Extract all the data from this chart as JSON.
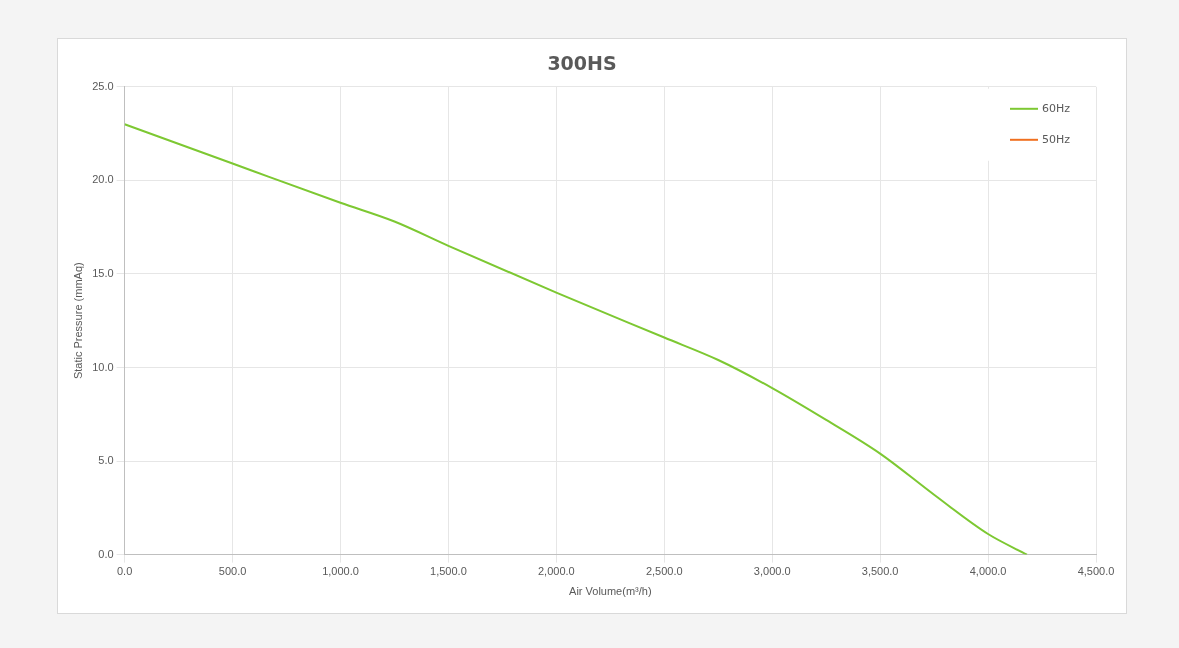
{
  "chart_data": {
    "type": "line",
    "title": "300HS",
    "xlabel": "Air Volume(m³/h)",
    "ylabel": "Static Pressure (mmAq)",
    "xlim": [
      0,
      4500
    ],
    "ylim": [
      0,
      25
    ],
    "xticks": [
      {
        "value": 0,
        "label": "0.0"
      },
      {
        "value": 500,
        "label": "500.0"
      },
      {
        "value": 1000,
        "label": "1,000.0"
      },
      {
        "value": 1500,
        "label": "1,500.0"
      },
      {
        "value": 2000,
        "label": "2,000.0"
      },
      {
        "value": 2500,
        "label": "2,500.0"
      },
      {
        "value": 3000,
        "label": "3,000.0"
      },
      {
        "value": 3500,
        "label": "3,500.0"
      },
      {
        "value": 4000,
        "label": "4,000.0"
      },
      {
        "value": 4500,
        "label": "4,500.0"
      }
    ],
    "yticks": [
      {
        "value": 0,
        "label": "0.0"
      },
      {
        "value": 5,
        "label": "5.0"
      },
      {
        "value": 10,
        "label": "10.0"
      },
      {
        "value": 15,
        "label": "15.0"
      },
      {
        "value": 20,
        "label": "20.0"
      },
      {
        "value": 25,
        "label": "25.0"
      }
    ],
    "x": [
      0,
      500,
      1000,
      1250,
      1500,
      2000,
      2500,
      2750,
      3000,
      3250,
      3500,
      3750,
      4000,
      4180
    ],
    "series": [
      {
        "name": "60Hz",
        "color": "#7dc832",
        "values": [
          23.0,
          20.9,
          18.8,
          17.8,
          16.5,
          14.0,
          11.6,
          10.4,
          8.9,
          7.2,
          5.4,
          3.2,
          1.1,
          0
        ]
      },
      {
        "name": "50Hz",
        "color": "#f07020",
        "values": [
          null,
          null,
          null,
          null,
          null,
          null,
          null,
          null,
          null,
          null,
          null,
          null,
          null,
          null
        ]
      }
    ],
    "grid": true,
    "legend": "top right",
    "marker": "none",
    "line_style": "solid"
  }
}
